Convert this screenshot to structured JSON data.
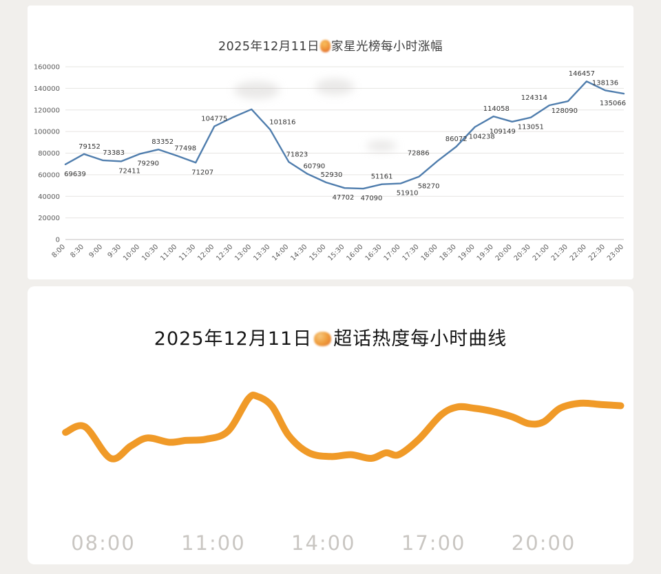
{
  "page": {
    "background": "#f1efec"
  },
  "chart_data": [
    {
      "id": "star-rank-hourly-gain",
      "type": "line",
      "title_prefix": "2025年12月11日",
      "title_censored_icon": "censored-emoji-blob",
      "title_suffix": "家星光榜每小时涨幅",
      "line_color": "#4f7dad",
      "grid": "horizontal",
      "y_axis": {
        "min": 0,
        "max": 160000,
        "ticks": [
          0,
          20000,
          40000,
          60000,
          80000,
          100000,
          120000,
          140000,
          160000
        ],
        "tick_labels": [
          "0",
          "20000",
          "40000",
          "60000",
          "80000",
          "100000",
          "120000",
          "140000",
          "160000"
        ]
      },
      "points": [
        {
          "time": "8:00",
          "value": 69639,
          "label": "69639",
          "label_pos": "below",
          "label_dx": 14
        },
        {
          "time": "8:30",
          "value": 79152,
          "label": "79152",
          "label_pos": "above",
          "label_dx": 8
        },
        {
          "time": "9:00",
          "value": 73383,
          "label": "73383",
          "label_pos": "above",
          "label_dx": 16
        },
        {
          "time": "9:30",
          "value": 72411,
          "label": "72411",
          "label_pos": "below",
          "label_dx": 12
        },
        {
          "time": "10:00",
          "value": 79290,
          "label": "79290",
          "label_pos": "below",
          "label_dx": 12
        },
        {
          "time": "10:30",
          "value": 83352,
          "label": "83352",
          "label_pos": "above",
          "label_dx": 6
        },
        {
          "time": "11:00",
          "value": 77498,
          "label": "77498",
          "label_pos": "above",
          "label_dx": 12
        },
        {
          "time": "11:30",
          "value": 71207,
          "label": "71207",
          "label_pos": "below",
          "label_dx": 10
        },
        {
          "time": "12:00",
          "value": 104775,
          "label": "104775",
          "label_pos": "above",
          "label_dx": 0
        },
        {
          "time": "12:30",
          "value": 113200,
          "label": "",
          "label_pos": "none",
          "label_dx": 0
        },
        {
          "time": "13:00",
          "value": 120600,
          "label": "",
          "label_pos": "none",
          "label_dx": 0
        },
        {
          "time": "13:30",
          "value": 101816,
          "label": "101816",
          "label_pos": "above",
          "label_dx": 18
        },
        {
          "time": "14:00",
          "value": 71823,
          "label": "71823",
          "label_pos": "above",
          "label_dx": 12
        },
        {
          "time": "14:30",
          "value": 60790,
          "label": "60790",
          "label_pos": "above",
          "label_dx": 10
        },
        {
          "time": "15:00",
          "value": 52930,
          "label": "52930",
          "label_pos": "above",
          "label_dx": 8
        },
        {
          "time": "15:30",
          "value": 47702,
          "label": "47702",
          "label_pos": "below",
          "label_dx": -2
        },
        {
          "time": "16:00",
          "value": 47090,
          "label": "47090",
          "label_pos": "below",
          "label_dx": 12
        },
        {
          "time": "16:30",
          "value": 51161,
          "label": "51161",
          "label_pos": "above",
          "label_dx": 0
        },
        {
          "time": "17:00",
          "value": 51910,
          "label": "51910",
          "label_pos": "below",
          "label_dx": 10
        },
        {
          "time": "17:30",
          "value": 58270,
          "label": "58270",
          "label_pos": "below",
          "label_dx": 14
        },
        {
          "time": "18:00",
          "value": 72886,
          "label": "72886",
          "label_pos": "above",
          "label_dx": -28
        },
        {
          "time": "18:30",
          "value": 86072,
          "label": "86072",
          "label_pos": "above",
          "label_dx": 0
        },
        {
          "time": "19:00",
          "value": 104238,
          "label": "104238",
          "label_pos": "below",
          "label_dx": 10
        },
        {
          "time": "19:30",
          "value": 114058,
          "label": "114058",
          "label_pos": "above",
          "label_dx": 4
        },
        {
          "time": "20:00",
          "value": 109149,
          "label": "109149",
          "label_pos": "below",
          "label_dx": -14
        },
        {
          "time": "20:30",
          "value": 113051,
          "label": "113051",
          "label_pos": "below",
          "label_dx": 0
        },
        {
          "time": "21:00",
          "value": 124314,
          "label": "124314",
          "label_pos": "above",
          "label_dx": -22
        },
        {
          "time": "21:30",
          "value": 128090,
          "label": "128090",
          "label_pos": "below",
          "label_dx": -5
        },
        {
          "time": "22:00",
          "value": 146457,
          "label": "146457",
          "label_pos": "above",
          "label_dx": -7
        },
        {
          "time": "22:30",
          "value": 138136,
          "label": "138136",
          "label_pos": "above",
          "label_dx": 0
        },
        {
          "time": "23:00",
          "value": 135066,
          "label": "135066",
          "label_pos": "below",
          "label_dx": -16
        }
      ]
    },
    {
      "id": "supertopic-heat-hourly",
      "type": "line",
      "style": "smooth-thick",
      "title_prefix": "2025年12月11日",
      "title_censored_icon": "censored-emoji-blob",
      "title_suffix": "超话热度每小时曲线",
      "line_color": "#f09a28",
      "grid": "off",
      "x_ticks": [
        {
          "hour": 8,
          "label": "08:00"
        },
        {
          "hour": 11,
          "label": "11:00"
        },
        {
          "hour": 14,
          "label": "14:00"
        },
        {
          "hour": 17,
          "label": "17:00"
        },
        {
          "hour": 20,
          "label": "20:00"
        }
      ],
      "curve": {
        "hours": [
          6.97,
          7.5,
          8.2,
          8.75,
          9.2,
          9.8,
          10.25,
          10.8,
          11.4,
          11.95,
          12.2,
          12.6,
          13.05,
          13.6,
          14.2,
          14.75,
          15.3,
          15.7,
          16.05,
          16.6,
          17.2,
          17.65,
          18.1,
          18.6,
          19.15,
          19.6,
          20.0,
          20.45,
          21.0,
          21.55,
          22.1
        ],
        "heat": [
          42,
          51,
          0,
          20,
          33,
          26,
          29,
          31,
          44,
          96,
          100,
          84,
          37,
          9,
          3,
          6,
          0,
          9,
          6,
          31,
          70,
          83,
          81,
          76,
          67,
          56,
          59,
          81,
          89,
          87,
          85
        ]
      }
    }
  ]
}
